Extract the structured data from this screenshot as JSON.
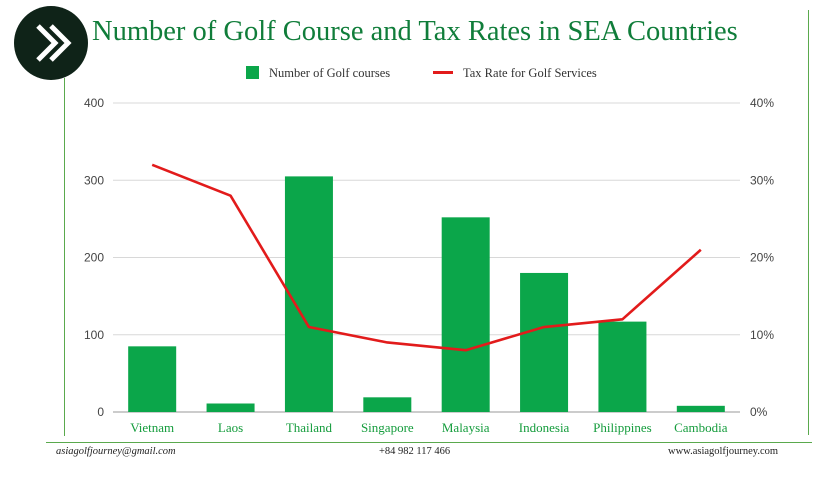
{
  "header": {
    "title": "Number of Golf Course and Tax Rates in SEA Countries"
  },
  "logo": {
    "icon": "double-chevron-right-icon"
  },
  "chart_data": {
    "type": "bar",
    "categories": [
      "Vietnam",
      "Laos",
      "Thailand",
      "Singapore",
      "Malaysia",
      "Indonesia",
      "Philippines",
      "Cambodia"
    ],
    "series": [
      {
        "name": "Number of Golf courses",
        "type": "bar",
        "axis": "left",
        "color": "#0ba64a",
        "values": [
          85,
          11,
          305,
          19,
          252,
          180,
          117,
          8
        ]
      },
      {
        "name": "Tax Rate for Golf Services",
        "type": "line",
        "axis": "right",
        "color": "#e21b1b",
        "values": [
          32,
          28,
          11,
          9,
          8,
          11,
          12,
          21
        ]
      }
    ],
    "y_left": {
      "min": 0,
      "max": 400,
      "ticks": [
        "0",
        "100",
        "200",
        "300",
        "400"
      ]
    },
    "y_right": {
      "min": 0,
      "max": 40,
      "ticks": [
        "0%",
        "10%",
        "20%",
        "30%",
        "40%"
      ]
    },
    "grid": true,
    "legend_position": "top"
  },
  "footer": {
    "email": "asiagolfjourney@gmail.com",
    "phone": "+84 982 117 466",
    "website": "www.asiagolfjourney.com"
  }
}
